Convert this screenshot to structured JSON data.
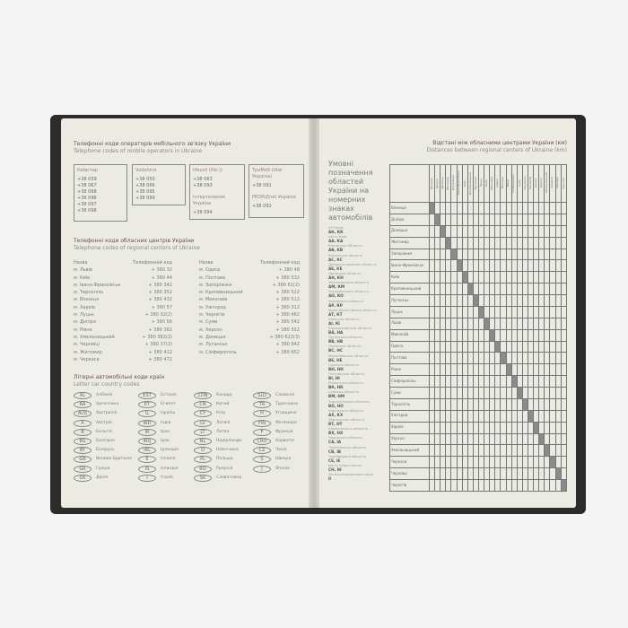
{
  "left_page": {
    "mobile_title_ua": "Телефонні коди операторів мобільного зв'язку України",
    "mobile_title_en": "Telephone codes of mobile operators in Ukraine",
    "operators": [
      {
        "name": "Київстар",
        "codes": [
          "+38 039",
          "+38 067",
          "+38 068",
          "+38 096",
          "+38 097",
          "+38 098"
        ]
      },
      {
        "name": "Vodafone",
        "codes": [
          "+38 050",
          "+38 066",
          "+38 095",
          "+38 099"
        ]
      },
      {
        "name": "lifecell (life:))",
        "codes": [
          "+38 063",
          "+38 093"
        ],
        "name2": "Інтертелеком Україна",
        "codes2": [
          "+38 094"
        ]
      },
      {
        "name": "ТриМоб (Utel Україна)",
        "codes": [
          "+38 091"
        ],
        "name2": "PEOPLEnet Україна",
        "codes2": [
          "+38 092"
        ]
      }
    ],
    "regional_title_ua": "Телефонні коди обласних центрів України",
    "regional_title_en": "Telephone codes of regional centers of Ukraine",
    "col_name": "Назва",
    "col_code": "Телефонний код",
    "regional_left": [
      [
        "м. Львів",
        "+ 380 32"
      ],
      [
        "м. Київ",
        "+ 380 44"
      ],
      [
        "м. Івано-Франківськ",
        "+ 380 342"
      ],
      [
        "м. Тернопіль",
        "+ 380 352"
      ],
      [
        "м. Вінниця",
        "+ 380 432"
      ],
      [
        "м. Харків",
        "+ 380 57"
      ],
      [
        "м. Луцьк",
        "+ 380 32(2)"
      ],
      [
        "м. Дніпро",
        "+ 380 56"
      ],
      [
        "м. Рівне",
        "+ 380 362"
      ],
      [
        "м. Хмельницький",
        "+ 380 382(2)"
      ],
      [
        "м. Чернівці",
        "+ 380 37(2)"
      ],
      [
        "м. Житомир",
        "+ 380 412"
      ],
      [
        "м. Черкаси",
        "+ 380 472"
      ]
    ],
    "regional_right": [
      [
        "м. Одеса",
        "+ 380 48"
      ],
      [
        "м. Полтава",
        "+ 380 532"
      ],
      [
        "м. Запоріжжя",
        "+ 380 61(2)"
      ],
      [
        "м. Кропивницький",
        "+ 380 522"
      ],
      [
        "м. Миколаїв",
        "+ 380 512"
      ],
      [
        "м. Ужгород",
        "+ 380 312"
      ],
      [
        "м. Чернігів",
        "+ 380 462"
      ],
      [
        "м. Суми",
        "+ 380 542"
      ],
      [
        "м. Херсон",
        "+ 380 552"
      ],
      [
        "м. Донецьк",
        "+ 380 622(3)"
      ],
      [
        "м. Луганськ",
        "+ 380 642"
      ],
      [
        "м. Сімферополь",
        "+ 380 652"
      ]
    ],
    "country_title_ua": "Літерні автомобільні коди країн",
    "country_title_en": "Letter car country codes",
    "country_columns": [
      [
        [
          "AL",
          "Албанія"
        ],
        [
          "RA",
          "Аргентина"
        ],
        [
          "AUS",
          "Австралія"
        ],
        [
          "A",
          "Австрія"
        ],
        [
          "B",
          "Бельгія"
        ],
        [
          "BG",
          "Болгарія"
        ],
        [
          "BY",
          "Білорусь"
        ],
        [
          "GB",
          "Велика Британія"
        ],
        [
          "GR",
          "Греція"
        ],
        [
          "DK",
          "Данія"
        ]
      ],
      [
        [
          "EST",
          "Естонія"
        ],
        [
          "ET",
          "Єгипет"
        ],
        [
          "IL",
          "Ізраїль"
        ],
        [
          "IND",
          "Індія"
        ],
        [
          "IR",
          "Іран"
        ],
        [
          "IRQ",
          "Ірак"
        ],
        [
          "IRL",
          "Ірландія"
        ],
        [
          "E",
          "Іспанія"
        ],
        [
          "IS",
          "Ісландія"
        ],
        [
          "I",
          "Італія"
        ]
      ],
      [
        [
          "CDN",
          "Канада"
        ],
        [
          "CN",
          "Китай"
        ],
        [
          "CY",
          "Кіпр"
        ],
        [
          "LV",
          "Латвія"
        ],
        [
          "LT",
          "Литва"
        ],
        [
          "NL",
          "Нідерланди"
        ],
        [
          "D",
          "Німеччина"
        ],
        [
          "PL",
          "Польща"
        ],
        [
          "RO",
          "Румунія"
        ],
        [
          "SK",
          "Словаччина"
        ]
      ],
      [
        [
          "SLO",
          "Словенія"
        ],
        [
          "TR",
          "Туреччина"
        ],
        [
          "H",
          "Угорщина"
        ],
        [
          "FIN",
          "Фінляндія"
        ],
        [
          "F",
          "Франція"
        ],
        [
          "CRO",
          "Хорватія"
        ],
        [
          "CZ",
          "Чехія"
        ],
        [
          "S",
          "Швеція"
        ],
        [
          "J",
          "Японія"
        ]
      ]
    ]
  },
  "right_page": {
    "title_ua": "Відстані між обласними центрами України (км)",
    "title_en": "Distances between regional centers of Ukraine (km)",
    "legend_title": "Умовні позначення областей України на номерних знаках автомобілів",
    "plates": [
      [
        "АР Крим",
        "АК, КК"
      ],
      [
        "місто Київ",
        "АА, КА"
      ],
      [
        "Вінницька область",
        "АВ, КВ"
      ],
      [
        "Волинська область",
        "АС, КС"
      ],
      [
        "Дніпропетровська область",
        "АЕ, КЕ"
      ],
      [
        "Донецька область",
        "АН, КН"
      ],
      [
        "Житомирська область",
        "АМ, КМ"
      ],
      [
        "Закарпатська область",
        "АО, КО"
      ],
      [
        "Запорізька область",
        "АР, КР"
      ],
      [
        "Івано-Франківська область",
        "АТ, КТ"
      ],
      [
        "Київська область",
        "АІ, КІ"
      ],
      [
        "Кіровоградська область",
        "ВА, НА"
      ],
      [
        "Луганська область",
        "ВВ, НВ"
      ],
      [
        "Львівська область",
        "ВС, НС"
      ],
      [
        "Миколаївська область",
        "ВЕ, НЕ"
      ],
      [
        "Одеська область",
        "ВН, НН"
      ],
      [
        "Полтавська область",
        "ВІ, НІ"
      ],
      [
        "Рівненська область",
        "ВК, НК"
      ],
      [
        "Сумська область",
        "ВМ, НМ"
      ],
      [
        "Тернопільська область",
        "ВО, НО"
      ],
      [
        "Харківська область",
        "АХ, КХ"
      ],
      [
        "Херсонська область",
        "ВТ, НТ"
      ],
      [
        "Хмельницька область",
        "ВХ, НХ"
      ],
      [
        "Черкаська область",
        "СА, ІА"
      ],
      [
        "Чернігівська область",
        "СВ, ІВ"
      ],
      [
        "Чернівецька область",
        "СЕ, ІЕ"
      ],
      [
        "місто Севастополь",
        "СН, ІН"
      ],
      [
        "Загальнодержавна серія",
        "ІІ"
      ]
    ],
    "cities": [
      "Вінниця",
      "Дніпро",
      "Донецьк",
      "Житомир",
      "Запоріжжя",
      "Івано-Франківськ",
      "Київ",
      "Кропивницький",
      "Луганськ",
      "Луцьк",
      "Львів",
      "Миколаїв",
      "Одеса",
      "Полтава",
      "Рівне",
      "Сімферополь",
      "Суми",
      "Тернопіль",
      "Ужгород",
      "Харків",
      "Херсон",
      "Хмельницький",
      "Черкаси",
      "Чернівці",
      "Чернігів"
    ]
  }
}
